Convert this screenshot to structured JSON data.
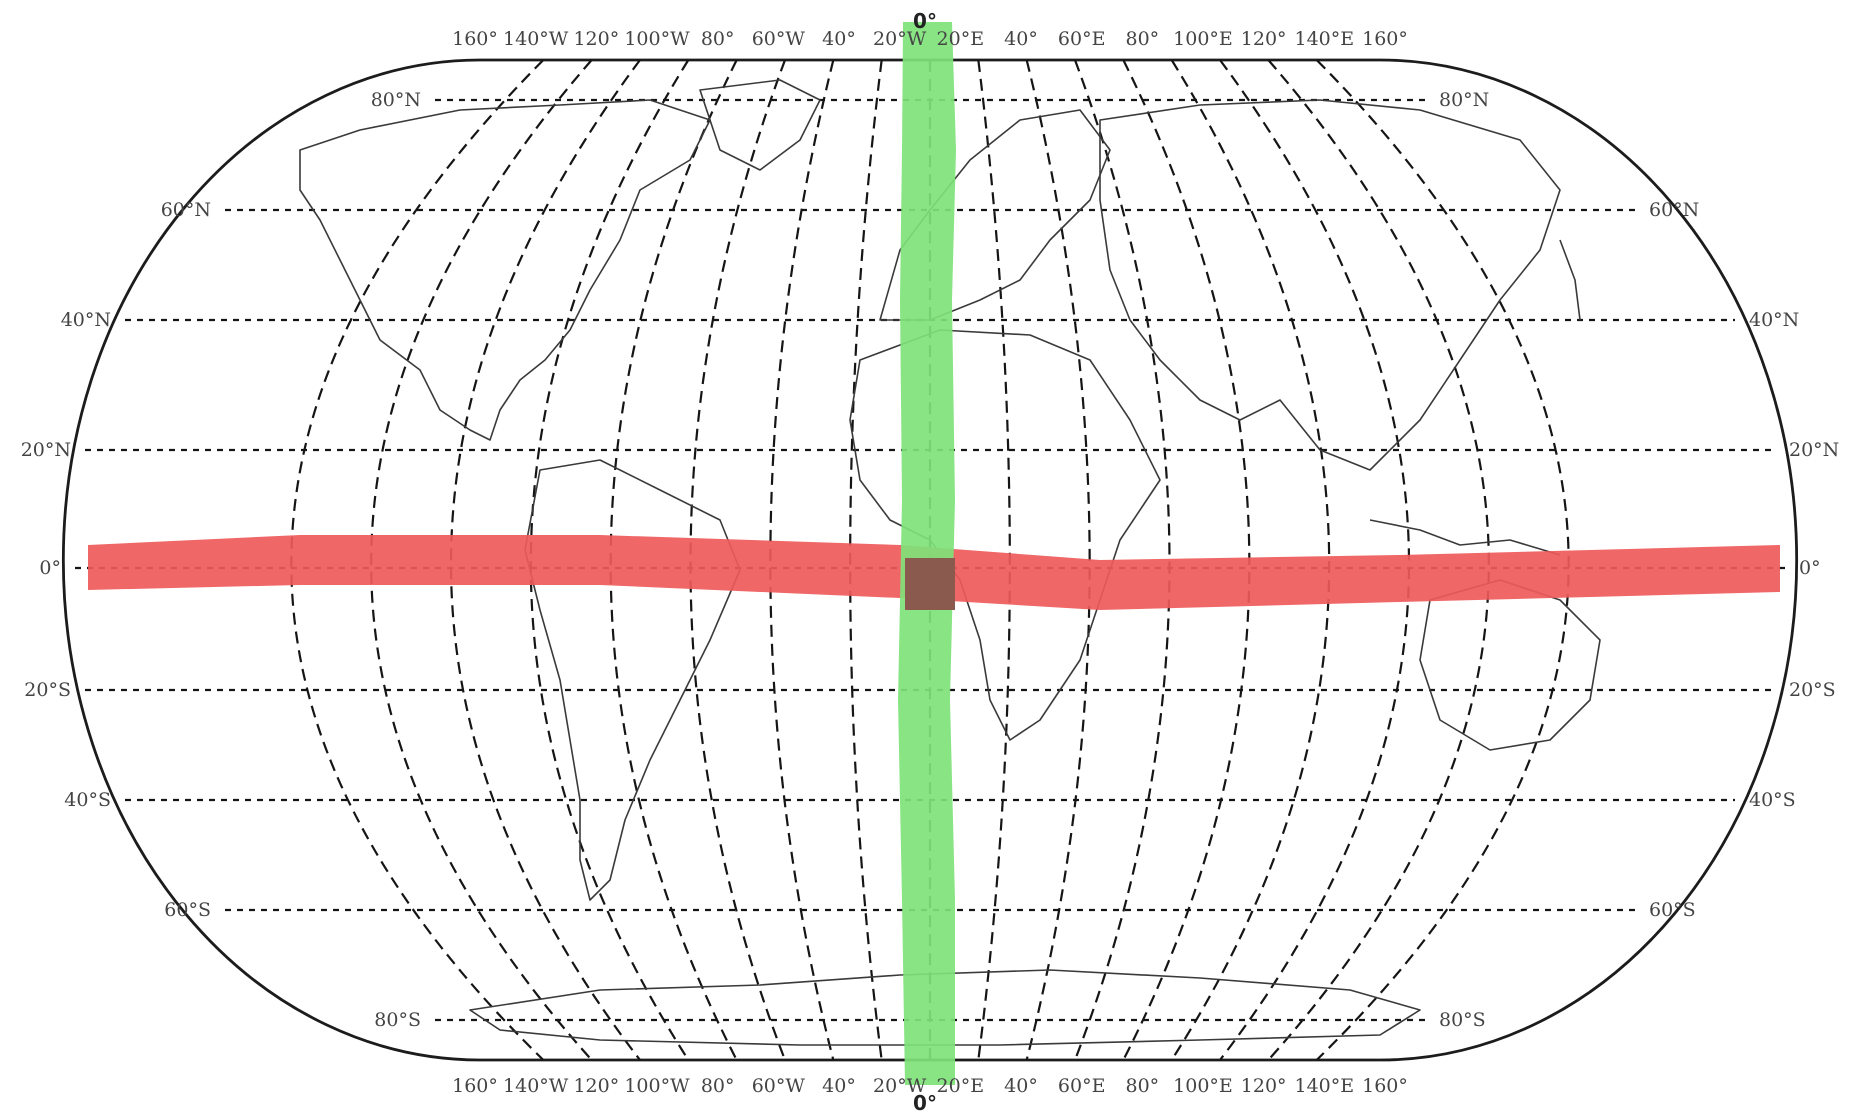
{
  "map": {
    "projection": "robinson-like world map",
    "graticule": "dashed",
    "top_meridian_labels": [
      "160°",
      "140°W",
      "120°",
      "100°W",
      "80°",
      "60°W",
      "40°",
      "20°W",
      "20°E",
      "40°",
      "60°E",
      "80°",
      "100°E",
      "120°",
      "140°E",
      "160°"
    ],
    "bottom_meridian_labels": [
      "160°",
      "140°W",
      "120°",
      "100°W",
      "80°",
      "60°W",
      "40°",
      "20°W",
      "20°E",
      "40°",
      "60°E",
      "80°",
      "100°E",
      "120°",
      "140°E",
      "160°"
    ],
    "left_latitude_labels": [
      "80°N",
      "60°N",
      "40°N",
      "20°N",
      "0°",
      "20°S",
      "40°S",
      "60°S",
      "80°S"
    ],
    "right_latitude_labels": [
      "80°N",
      "60°N",
      "40°N",
      "20°N",
      "0°",
      "20°S",
      "40°S",
      "60°S",
      "80°S"
    ],
    "prime_meridian_top_label": "0°",
    "prime_meridian_bottom_label": "0°",
    "highlights": {
      "equator": {
        "color": "#ef5a5a",
        "latitude": 0
      },
      "prime_meridian": {
        "color": "#7fe27a",
        "longitude": 0
      },
      "intersection": {
        "color": "#8a5a4f"
      }
    }
  }
}
